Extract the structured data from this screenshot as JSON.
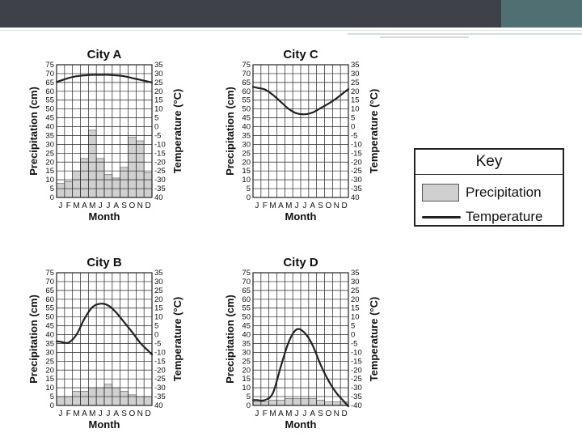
{
  "key": {
    "title": "Key",
    "precipitation_label": "Precipitation",
    "temperature_label": "Temperature"
  },
  "colors": {
    "bar_fill": "#d0d0d0",
    "bar_stroke": "#555555",
    "line": "#222222",
    "grid": "#222222"
  },
  "chart_data": [
    {
      "type": "bar",
      "title": "City A",
      "xlabel": "Month",
      "ylabel": "Precipitation (cm)",
      "y2label": "Temperature (°C)",
      "categories": [
        "J",
        "F",
        "M",
        "A",
        "M",
        "J",
        "J",
        "A",
        "S",
        "O",
        "N",
        "D"
      ],
      "ylim": [
        0,
        75
      ],
      "y_ticks": [
        0,
        5,
        10,
        15,
        20,
        25,
        30,
        35,
        40,
        45,
        50,
        55,
        60,
        65,
        70,
        75
      ],
      "y2lim": [
        -40,
        35
      ],
      "y2_ticks": [
        35,
        30,
        25,
        20,
        15,
        10,
        5,
        0,
        -5,
        -10,
        -15,
        -20,
        -25,
        -30,
        -35,
        40
      ],
      "grid": true,
      "series": [
        {
          "name": "Precipitation",
          "type": "bar",
          "axis": "left",
          "values": [
            8,
            9,
            15,
            22,
            38,
            22,
            13,
            11,
            17,
            34,
            32,
            14
          ]
        },
        {
          "name": "Temperature",
          "type": "line",
          "axis": "right",
          "values": [
            26,
            27.5,
            28.5,
            29,
            29.3,
            29.3,
            29.3,
            29,
            28.5,
            27.5,
            26.5,
            25.5
          ]
        }
      ]
    },
    {
      "type": "bar",
      "title": "City C",
      "xlabel": "Month",
      "ylabel": "Precipitation (cm)",
      "y2label": "Temperature (°C)",
      "categories": [
        "J",
        "F",
        "M",
        "A",
        "M",
        "J",
        "J",
        "A",
        "S",
        "O",
        "N",
        "D"
      ],
      "ylim": [
        0,
        75
      ],
      "y_ticks": [
        0,
        5,
        10,
        15,
        20,
        25,
        30,
        35,
        40,
        45,
        50,
        55,
        60,
        65,
        70,
        75
      ],
      "y2lim": [
        -40,
        35
      ],
      "y2_ticks": [
        35,
        30,
        25,
        20,
        15,
        10,
        5,
        0,
        -5,
        -10,
        -15,
        -20,
        -25,
        -30,
        -35,
        40
      ],
      "grid": true,
      "series": [
        {
          "name": "Precipitation",
          "type": "bar",
          "axis": "left",
          "values": [
            0,
            0,
            0,
            0,
            0,
            0,
            0,
            0,
            0,
            0,
            0,
            0
          ]
        },
        {
          "name": "Temperature",
          "type": "line",
          "axis": "right",
          "values": [
            22,
            21,
            18,
            14,
            10,
            7.5,
            7,
            8,
            10.5,
            13,
            16,
            19.5
          ]
        }
      ]
    },
    {
      "type": "bar",
      "title": "City B",
      "xlabel": "Month",
      "ylabel": "Precipitation (cm)",
      "y2label": "Temperature (°C)",
      "categories": [
        "J",
        "F",
        "M",
        "A",
        "M",
        "J",
        "J",
        "A",
        "S",
        "O",
        "N",
        "D"
      ],
      "ylim": [
        0,
        75
      ],
      "y_ticks": [
        0,
        5,
        10,
        15,
        20,
        25,
        30,
        35,
        40,
        45,
        50,
        55,
        60,
        65,
        70,
        75
      ],
      "y2lim": [
        -40,
        35
      ],
      "y2_ticks": [
        35,
        30,
        25,
        20,
        15,
        10,
        5,
        0,
        -5,
        -10,
        -15,
        -20,
        -25,
        -30,
        -35,
        40
      ],
      "grid": true,
      "series": [
        {
          "name": "Precipitation",
          "type": "bar",
          "axis": "left",
          "values": [
            5,
            5,
            8,
            8,
            10,
            10,
            12,
            10,
            8,
            6,
            5,
            5
          ]
        },
        {
          "name": "Temperature",
          "type": "line",
          "axis": "right",
          "values": [
            -4,
            -4.5,
            0,
            9,
            15.5,
            17.5,
            16.5,
            12.5,
            7,
            1.5,
            -4.5,
            -9
          ]
        }
      ]
    },
    {
      "type": "bar",
      "title": "City D",
      "xlabel": "Month",
      "ylabel": "Precipitation (cm)",
      "y2label": "Temperature (°C)",
      "categories": [
        "J",
        "F",
        "M",
        "A",
        "M",
        "J",
        "J",
        "A",
        "S",
        "O",
        "N",
        "D"
      ],
      "ylim": [
        0,
        75
      ],
      "y_ticks": [
        0,
        5,
        10,
        15,
        20,
        25,
        30,
        35,
        40,
        45,
        50,
        55,
        60,
        65,
        70,
        75
      ],
      "y2lim": [
        -40,
        35
      ],
      "y2_ticks": [
        35,
        30,
        25,
        20,
        15,
        10,
        5,
        0,
        -5,
        -10,
        -15,
        -20,
        -25,
        -30,
        -35,
        -40
      ],
      "grid": true,
      "series": [
        {
          "name": "Precipitation",
          "type": "bar",
          "axis": "left",
          "values": [
            2,
            2,
            3,
            3,
            4,
            4,
            4,
            4,
            3,
            2,
            2,
            2
          ]
        },
        {
          "name": "Temperature",
          "type": "line",
          "axis": "right",
          "values": [
            -37,
            -37,
            -33,
            -18,
            -4,
            3,
            1,
            -6,
            -17,
            -26,
            -33,
            -38
          ]
        }
      ]
    }
  ]
}
